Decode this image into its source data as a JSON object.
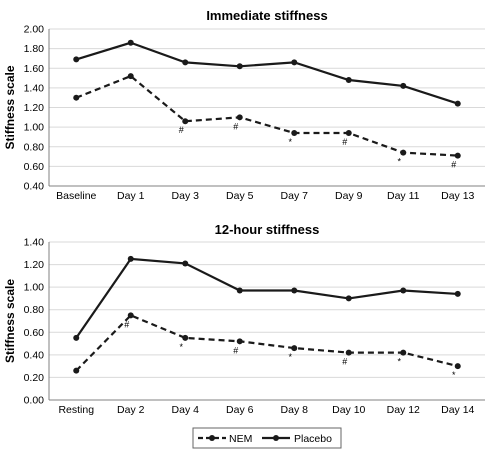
{
  "chart_data": [
    {
      "type": "line",
      "title": "Immediate stiffness",
      "ylabel": "Stiffness scale",
      "xlabel": "",
      "ylim": [
        0.4,
        2.0
      ],
      "yticks": [
        "0.40",
        "0.60",
        "0.80",
        "1.00",
        "1.20",
        "1.40",
        "1.60",
        "1.80",
        "2.00"
      ],
      "ytick_values": [
        0.4,
        0.6,
        0.8,
        1.0,
        1.2,
        1.4,
        1.6,
        1.8,
        2.0
      ],
      "grid": true,
      "categories": [
        "Baseline",
        "Day 1",
        "Day 3",
        "Day 5",
        "Day 7",
        "Day 9",
        "Day 11",
        "Day 13"
      ],
      "series": [
        {
          "name": "Placebo",
          "values": [
            1.69,
            1.86,
            1.66,
            1.62,
            1.66,
            1.48,
            1.42,
            1.24
          ],
          "style": "solid",
          "annotations": [
            "",
            "",
            "",
            "",
            "",
            "",
            "",
            ""
          ]
        },
        {
          "name": "NEM",
          "values": [
            1.3,
            1.52,
            1.06,
            1.1,
            0.94,
            0.94,
            0.74,
            0.71
          ],
          "style": "dashed",
          "annotations": [
            "",
            "",
            "#",
            "#",
            "*",
            "#",
            "*",
            "#"
          ]
        }
      ]
    },
    {
      "type": "line",
      "title": "12-hour stiffness",
      "ylabel": "Stiffness scale",
      "xlabel": "",
      "ylim": [
        0.0,
        1.4
      ],
      "yticks": [
        "0.00",
        "0.20",
        "0.40",
        "0.60",
        "0.80",
        "1.00",
        "1.20",
        "1.40"
      ],
      "ytick_values": [
        0.0,
        0.2,
        0.4,
        0.6,
        0.8,
        1.0,
        1.2,
        1.4
      ],
      "grid": true,
      "categories": [
        "Resting",
        "Day 2",
        "Day 4",
        "Day 6",
        "Day 8",
        "Day 10",
        "Day 12",
        "Day 14"
      ],
      "series": [
        {
          "name": "Placebo",
          "values": [
            0.55,
            1.25,
            1.21,
            0.97,
            0.97,
            0.9,
            0.97,
            0.94
          ],
          "style": "solid",
          "annotations": [
            "",
            "",
            "",
            "",
            "",
            "",
            "",
            ""
          ]
        },
        {
          "name": "NEM",
          "values": [
            0.26,
            0.75,
            0.55,
            0.52,
            0.46,
            0.42,
            0.42,
            0.3
          ],
          "style": "dashed",
          "annotations": [
            "",
            "#",
            "*",
            "#",
            "*",
            "#",
            "*",
            "*"
          ]
        }
      ]
    }
  ],
  "legend": {
    "placement": "bottom-center",
    "items": [
      {
        "label": "NEM",
        "style": "dashed"
      },
      {
        "label": "Placebo",
        "style": "solid"
      }
    ]
  },
  "colors": {
    "line": "#1a1a1a",
    "grid": "#d9d9d9",
    "axis": "#808080"
  }
}
